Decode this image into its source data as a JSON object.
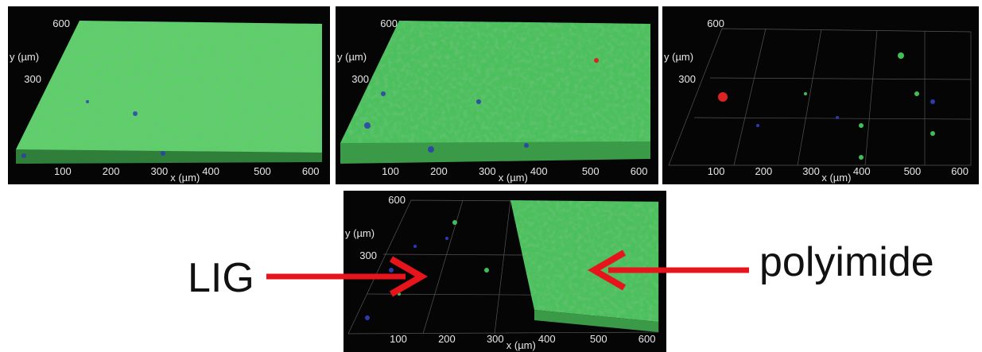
{
  "panels": [
    {
      "y_ticks": [
        600,
        300
      ],
      "y_label": "y (µm)",
      "x_ticks": [
        100,
        200,
        300,
        400,
        500,
        600
      ],
      "x_label": "x (µm)"
    },
    {
      "y_ticks": [
        600,
        300
      ],
      "y_label": "y (µm)",
      "x_ticks": [
        100,
        200,
        300,
        400,
        500,
        600
      ],
      "x_label": "x (µm)"
    },
    {
      "y_ticks": [
        600,
        300
      ],
      "y_label": "y (µm)",
      "x_ticks": [
        100,
        200,
        300,
        400,
        500,
        600
      ],
      "x_label": "x (µm)"
    },
    {
      "y_ticks": [
        600,
        300
      ],
      "y_label": "y (µm)",
      "x_ticks": [
        100,
        200,
        300,
        400,
        500,
        600
      ],
      "x_label": "x (µm)"
    }
  ],
  "annotations": {
    "left": "LIG",
    "right": "polyimide"
  }
}
